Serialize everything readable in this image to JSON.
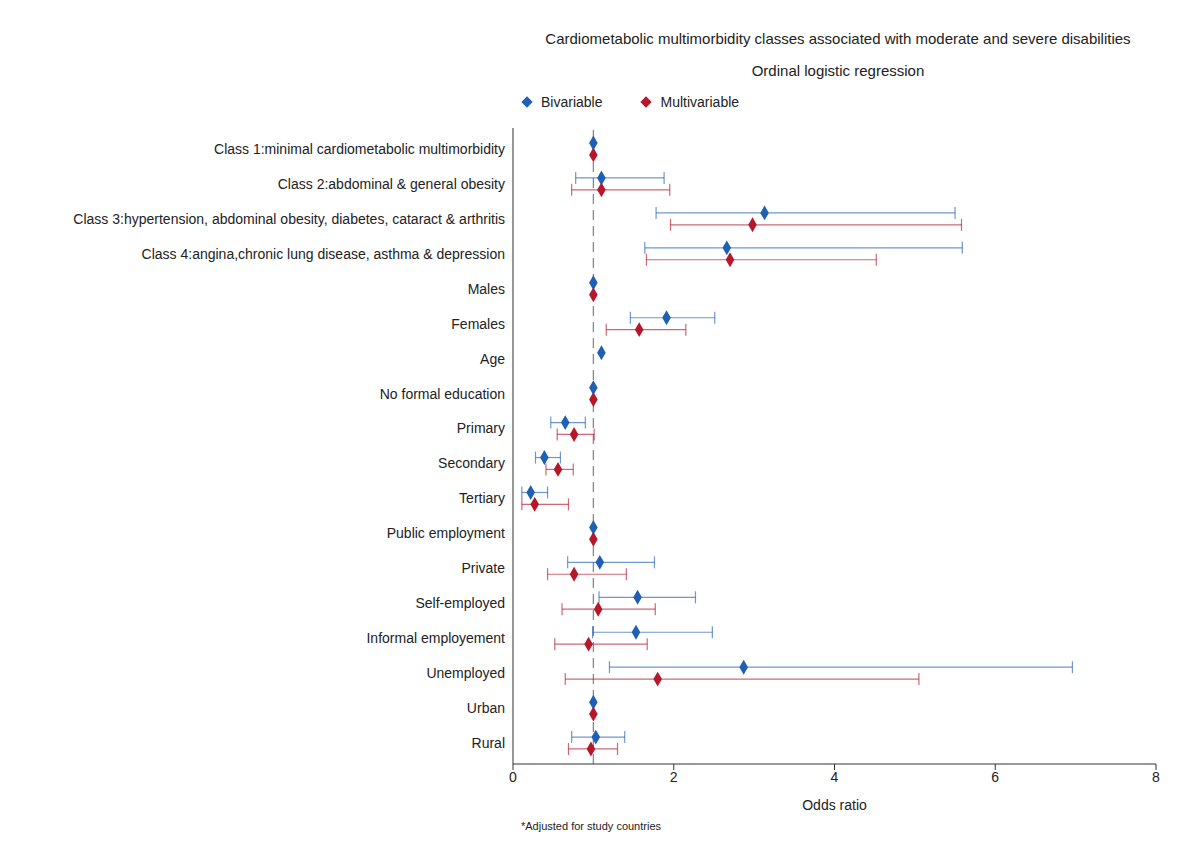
{
  "chart_data": {
    "type": "forest",
    "title": "Cardiometabolic multimorbidity classes associated with moderate and severe disabilities",
    "subtitle": "Ordinal logistic regression",
    "orientation": "horizontal",
    "legend": "top",
    "categories": [
      "Class 1:minimal cardiometabolic multimorbidity",
      "Class 2:abdominal & general obesity",
      "Class 3:hypertension, abdominal obesity, diabetes, cataract & arthritis",
      "Class 4:angina,chronic lung disease, asthma & depression",
      "Males",
      "Females",
      "Age",
      "No formal education",
      "Primary",
      "Secondary",
      "Tertiary",
      "Public employment",
      "Private",
      "Self-employed",
      "Informal employement",
      "Unemployed",
      "Urban",
      "Rural"
    ],
    "series": [
      {
        "name": "Bivariable",
        "color": "#1f5fb4",
        "marker": "diamond",
        "values": [
          1,
          1.1,
          3.13,
          2.66,
          1,
          1.91,
          1.1,
          1,
          0.65,
          0.39,
          0.22,
          1,
          1.08,
          1.55,
          1.53,
          2.87,
          1,
          1.03
        ],
        "lower": [
          null,
          0.78,
          1.78,
          1.64,
          null,
          1.46,
          null,
          null,
          0.47,
          0.28,
          0.11,
          null,
          0.68,
          1.07,
          0.99,
          1.2,
          null,
          0.73
        ],
        "upper": [
          null,
          1.88,
          5.5,
          5.59,
          null,
          2.51,
          null,
          null,
          0.9,
          0.59,
          0.43,
          null,
          1.76,
          2.27,
          2.48,
          6.96,
          null,
          1.39
        ]
      },
      {
        "name": "Multivariable",
        "color": "#b5172b",
        "marker": "diamond",
        "values": [
          1,
          1.1,
          2.98,
          2.7,
          1,
          1.57,
          null,
          1,
          0.76,
          0.56,
          0.27,
          1,
          0.76,
          1.06,
          0.94,
          1.8,
          1,
          0.97
        ],
        "lower": [
          null,
          0.73,
          1.96,
          1.66,
          null,
          1.16,
          null,
          null,
          0.55,
          0.41,
          0.11,
          null,
          0.43,
          0.61,
          0.52,
          0.65,
          null,
          0.69
        ],
        "upper": [
          null,
          1.95,
          5.58,
          4.52,
          null,
          2.15,
          null,
          null,
          1.01,
          0.75,
          0.69,
          null,
          1.41,
          1.77,
          1.67,
          5.05,
          null,
          1.3
        ]
      }
    ],
    "x_label": "Odds ratio",
    "xlim": [
      0,
      8
    ],
    "xticks": [
      0,
      2,
      4,
      6,
      8
    ],
    "reference_line": 1,
    "note": "*Adjusted for study countries"
  }
}
